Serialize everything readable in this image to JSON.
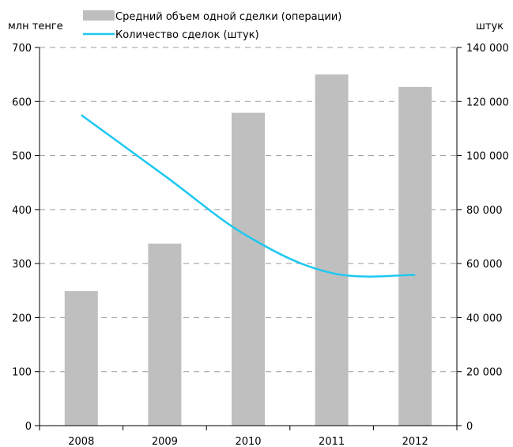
{
  "chart_data": {
    "type": "bar",
    "categories": [
      "2008",
      "2009",
      "2010",
      "2011",
      "2012"
    ],
    "series": [
      {
        "name": "Средний объем одной сделки (операции)",
        "type": "bar",
        "axis": "left",
        "color": "#bfbfbf",
        "values": [
          249,
          337,
          579,
          650,
          627
        ]
      },
      {
        "name": "Количество сделок (штук)",
        "type": "line",
        "axis": "right",
        "color": "#1ec8f0",
        "values": [
          115000,
          92500,
          70000,
          56500,
          55800
        ]
      }
    ],
    "ylabel_left": "млн тенге",
    "ylabel_right": "штук",
    "ylim_left": [
      0,
      700
    ],
    "ylim_right": [
      0,
      140000
    ],
    "yticks_left": [
      "0",
      "100",
      "200",
      "300",
      "400",
      "500",
      "600",
      "700"
    ],
    "yticks_right": [
      "0",
      "20 000",
      "40 000",
      "60 000",
      "80 000",
      "100 000",
      "120 000",
      "140 000"
    ],
    "grid": "dashed horizontal",
    "legend": "top"
  }
}
